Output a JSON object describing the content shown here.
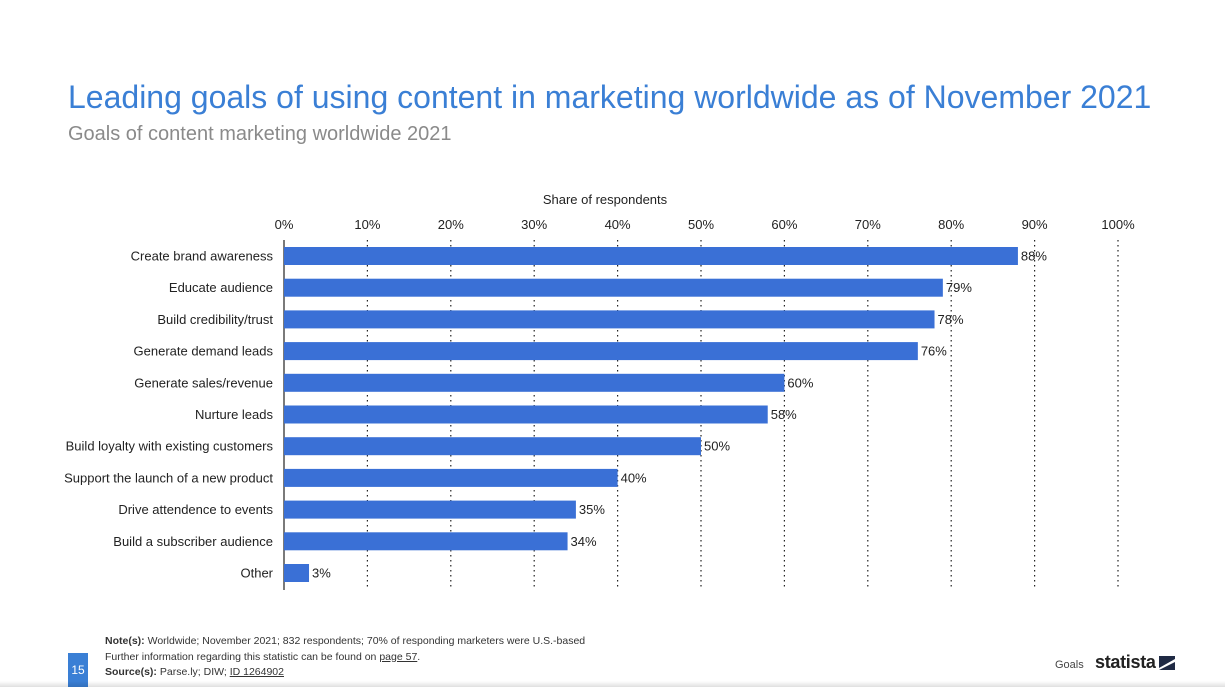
{
  "header": {
    "title": "Leading goals of using content in marketing worldwide as of November 2021",
    "subtitle": "Goals of content marketing worldwide 2021"
  },
  "chart_data": {
    "type": "bar",
    "orientation": "horizontal",
    "title": "Leading goals of using content in marketing worldwide as of November 2021",
    "subtitle": "Goals of content marketing worldwide 2021",
    "xlabel": "Share of respondents",
    "ylabel": "",
    "xlim": [
      0,
      100
    ],
    "x_ticks": [
      "0%",
      "10%",
      "20%",
      "30%",
      "40%",
      "50%",
      "60%",
      "70%",
      "80%",
      "90%",
      "100%"
    ],
    "grid": "vertical dotted",
    "legend": "none",
    "bar_color": "#3a70d6",
    "categories": [
      "Create brand awareness",
      "Educate audience",
      "Build credibility/trust",
      "Generate demand leads",
      "Generate sales/revenue",
      "Nurture leads",
      "Build loyalty with existing customers",
      "Support the launch of a new product",
      "Drive attendence to events",
      "Build a subscriber audience",
      "Other"
    ],
    "values": [
      88,
      79,
      78,
      76,
      60,
      58,
      50,
      40,
      35,
      34,
      3
    ],
    "value_labels": [
      "88%",
      "79%",
      "78%",
      "76%",
      "60%",
      "58%",
      "50%",
      "40%",
      "35%",
      "34%",
      "3%"
    ]
  },
  "footer": {
    "notes_label": "Note(s):",
    "notes_text": "Worldwide; November 2021; 832 respondents; 70% of responding marketers were U.S.-based",
    "further_text": "Further information regarding this statistic can be found on",
    "further_link": "page 57",
    "further_end": ".",
    "source_label": "Source(s):",
    "source_text": "Parse.ly; DIW;",
    "source_id": "ID 1264902",
    "page_number": "15",
    "section_label": "Goals",
    "logo_text": "statista"
  },
  "colors": {
    "title": "#3a7fd5",
    "subtitle": "#8a8a8a",
    "bar": "#3a70d6",
    "page_badge": "#3a7fd5"
  }
}
